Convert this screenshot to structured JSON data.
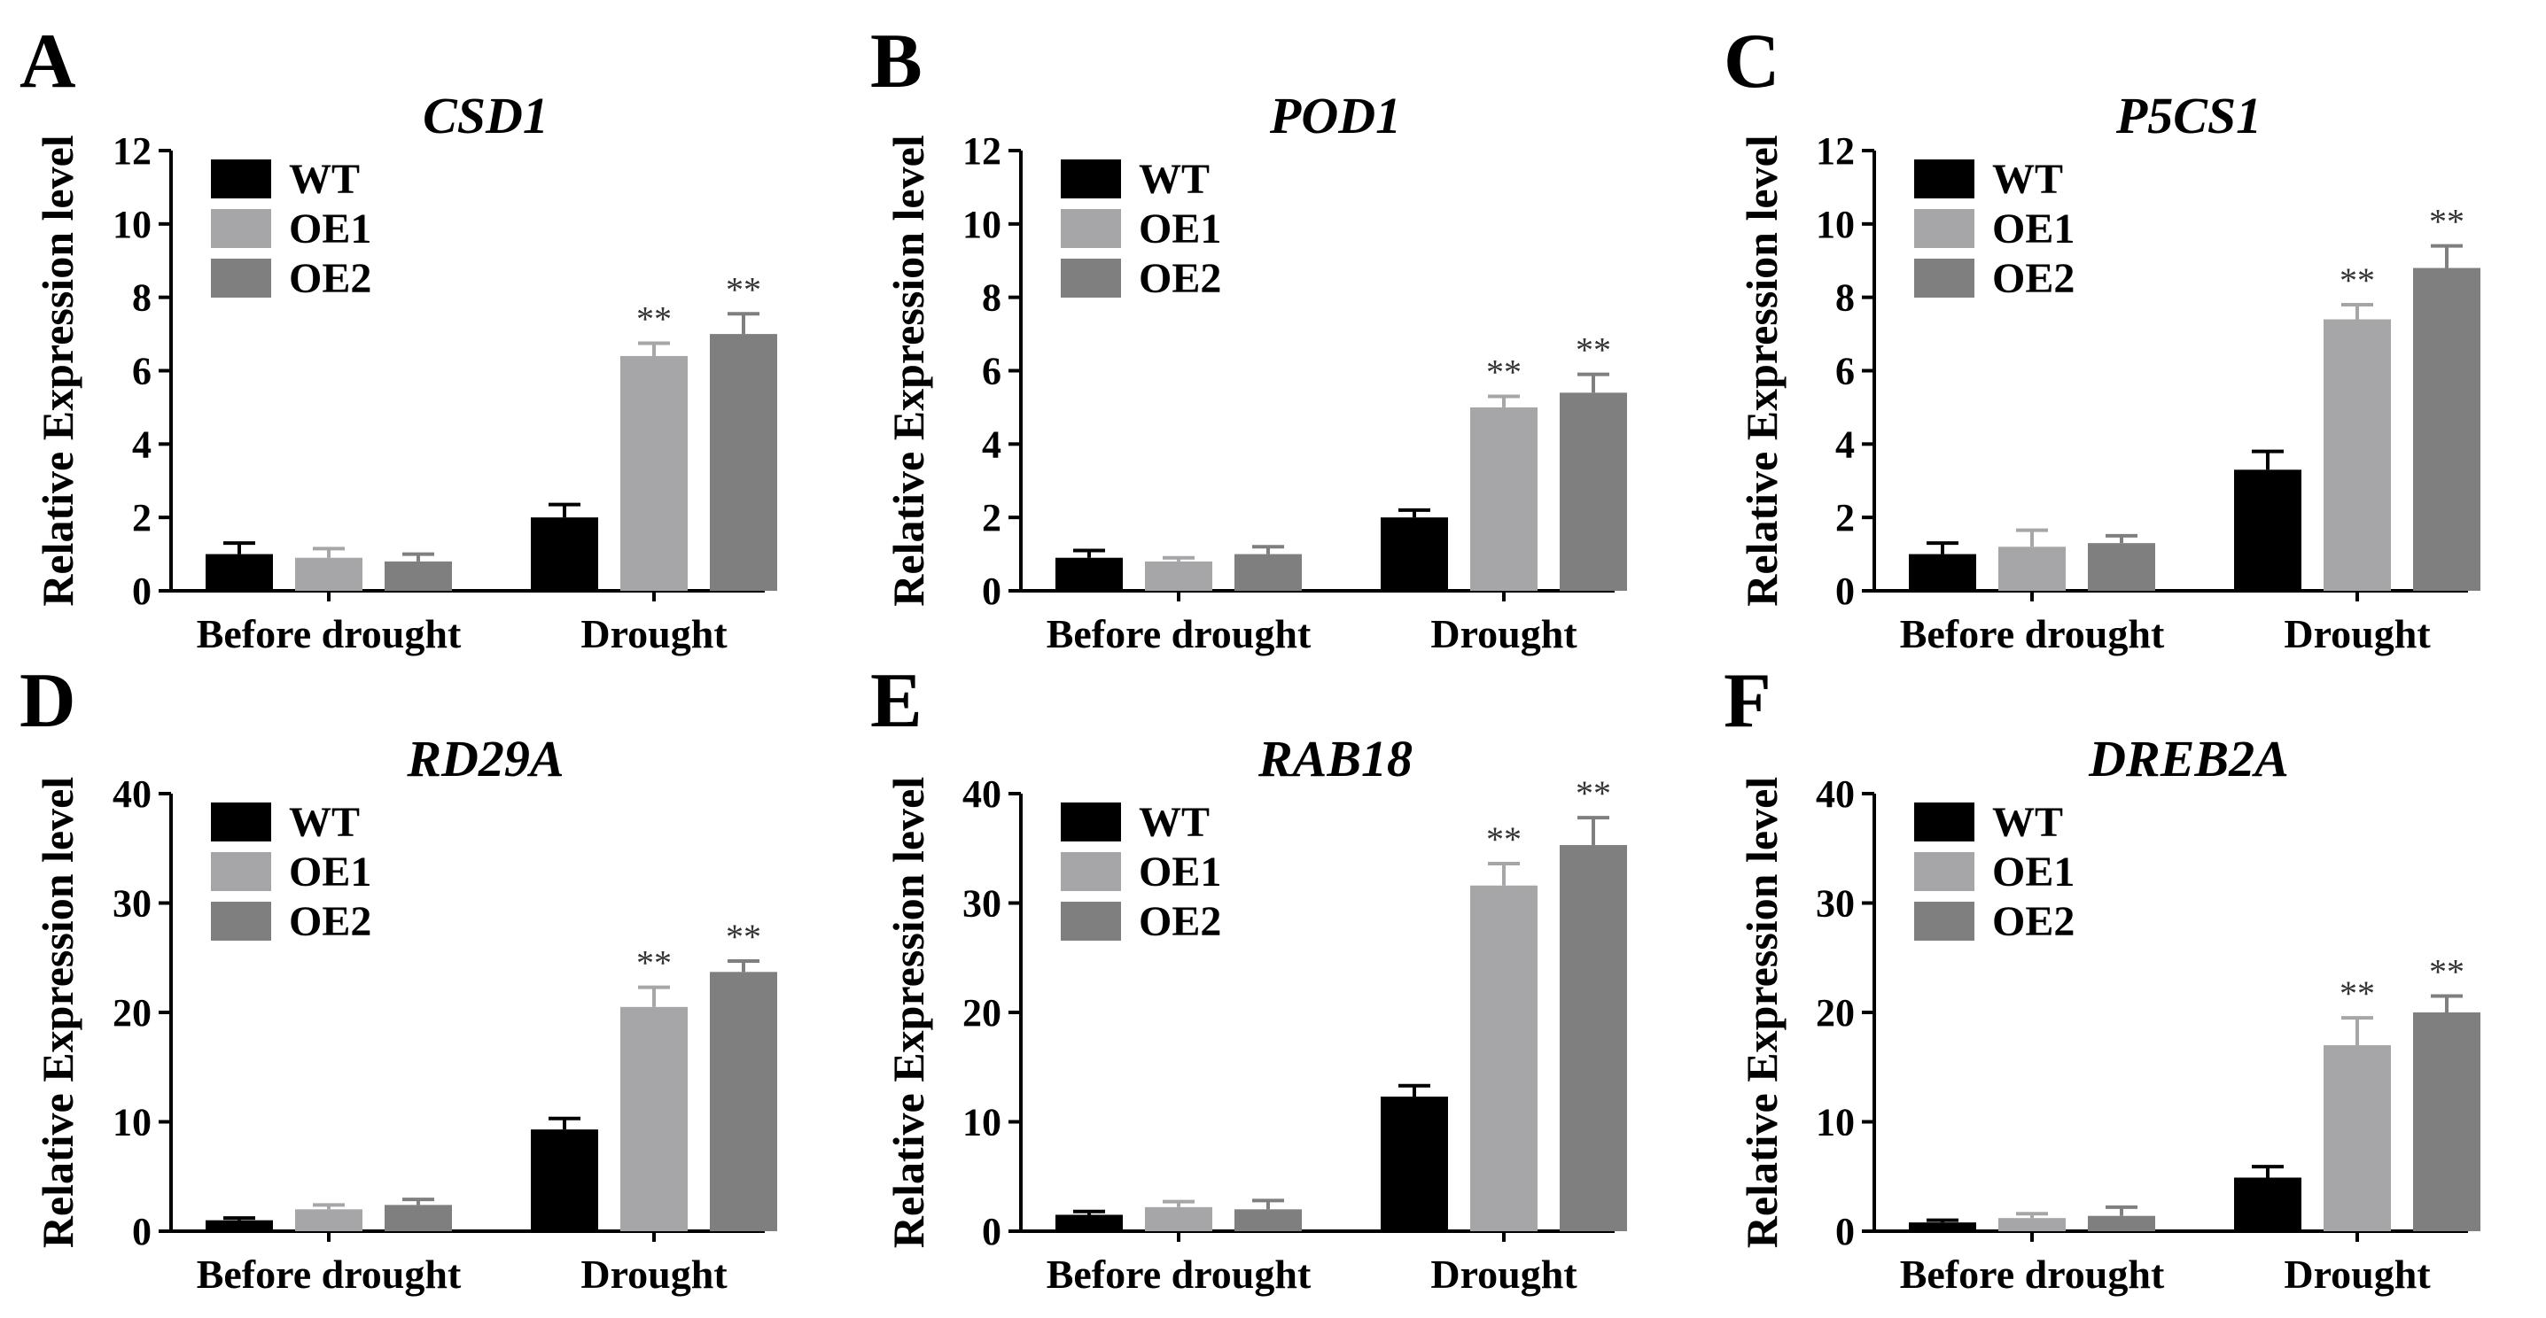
{
  "figure": {
    "colors": {
      "WT": "#000000",
      "OE1": "#a6a6a8",
      "OE2": "#7f7f7f"
    }
  },
  "chart_data": [
    {
      "panel": "A",
      "type": "bar",
      "title": "CSD1",
      "ylabel": "Relative Expression level",
      "xlabel": "",
      "ylim": [
        0,
        12
      ],
      "yticks": [
        0,
        2,
        4,
        6,
        8,
        10,
        12
      ],
      "categories": [
        "Before drought",
        "Drought"
      ],
      "legend": "top-left",
      "series": [
        {
          "name": "WT",
          "values": [
            1.0,
            2.0
          ],
          "errors": [
            0.3,
            0.35
          ],
          "sig": [
            "",
            ""
          ]
        },
        {
          "name": "OE1",
          "values": [
            0.9,
            6.4
          ],
          "errors": [
            0.25,
            0.35
          ],
          "sig": [
            "",
            "**"
          ]
        },
        {
          "name": "OE2",
          "values": [
            0.8,
            7.0
          ],
          "errors": [
            0.2,
            0.55
          ],
          "sig": [
            "",
            "**"
          ]
        }
      ]
    },
    {
      "panel": "B",
      "type": "bar",
      "title": "POD1",
      "ylabel": "Relative Expression level",
      "xlabel": "",
      "ylim": [
        0,
        12
      ],
      "yticks": [
        0,
        2,
        4,
        6,
        8,
        10,
        12
      ],
      "categories": [
        "Before drought",
        "Drought"
      ],
      "legend": "top-left",
      "series": [
        {
          "name": "WT",
          "values": [
            0.9,
            2.0
          ],
          "errors": [
            0.2,
            0.2
          ],
          "sig": [
            "",
            ""
          ]
        },
        {
          "name": "OE1",
          "values": [
            0.8,
            5.0
          ],
          "errors": [
            0.1,
            0.3
          ],
          "sig": [
            "",
            "**"
          ]
        },
        {
          "name": "OE2",
          "values": [
            1.0,
            5.4
          ],
          "errors": [
            0.2,
            0.5
          ],
          "sig": [
            "",
            "**"
          ]
        }
      ]
    },
    {
      "panel": "C",
      "type": "bar",
      "title": "P5CS1",
      "ylabel": "Relative Expression level",
      "xlabel": "",
      "ylim": [
        0,
        12
      ],
      "yticks": [
        0,
        2,
        4,
        6,
        8,
        10,
        12
      ],
      "categories": [
        "Before drought",
        "Drought"
      ],
      "legend": "top-left",
      "series": [
        {
          "name": "WT",
          "values": [
            1.0,
            3.3
          ],
          "errors": [
            0.3,
            0.5
          ],
          "sig": [
            "",
            ""
          ]
        },
        {
          "name": "OE1",
          "values": [
            1.2,
            7.4
          ],
          "errors": [
            0.45,
            0.4
          ],
          "sig": [
            "",
            "**"
          ]
        },
        {
          "name": "OE2",
          "values": [
            1.3,
            8.8
          ],
          "errors": [
            0.2,
            0.6
          ],
          "sig": [
            "",
            "**"
          ]
        }
      ]
    },
    {
      "panel": "D",
      "type": "bar",
      "title": "RD29A",
      "ylabel": "Relative Expression level",
      "xlabel": "",
      "ylim": [
        0,
        40
      ],
      "yticks": [
        0,
        10,
        20,
        30,
        40
      ],
      "categories": [
        "Before drought",
        "Drought"
      ],
      "legend": "top-left",
      "series": [
        {
          "name": "WT",
          "values": [
            1.0,
            9.3
          ],
          "errors": [
            0.2,
            1.0
          ],
          "sig": [
            "",
            ""
          ]
        },
        {
          "name": "OE1",
          "values": [
            2.0,
            20.5
          ],
          "errors": [
            0.4,
            1.8
          ],
          "sig": [
            "",
            "**"
          ]
        },
        {
          "name": "OE2",
          "values": [
            2.4,
            23.7
          ],
          "errors": [
            0.5,
            1.0
          ],
          "sig": [
            "",
            "**"
          ]
        }
      ]
    },
    {
      "panel": "E",
      "type": "bar",
      "title": "RAB18",
      "ylabel": "Relative Expression level",
      "xlabel": "",
      "ylim": [
        0,
        40
      ],
      "yticks": [
        0,
        10,
        20,
        30,
        40
      ],
      "categories": [
        "Before drought",
        "Drought"
      ],
      "legend": "top-left",
      "series": [
        {
          "name": "WT",
          "values": [
            1.5,
            12.3
          ],
          "errors": [
            0.3,
            1.0
          ],
          "sig": [
            "",
            ""
          ]
        },
        {
          "name": "OE1",
          "values": [
            2.2,
            31.6
          ],
          "errors": [
            0.5,
            2.0
          ],
          "sig": [
            "",
            "**"
          ]
        },
        {
          "name": "OE2",
          "values": [
            2.0,
            35.3
          ],
          "errors": [
            0.8,
            2.5
          ],
          "sig": [
            "",
            "**"
          ]
        }
      ]
    },
    {
      "panel": "F",
      "type": "bar",
      "title": "DREB2A",
      "ylabel": "Relative Expression level",
      "xlabel": "",
      "ylim": [
        0,
        40
      ],
      "yticks": [
        0,
        10,
        20,
        30,
        40
      ],
      "categories": [
        "Before drought",
        "Drought"
      ],
      "legend": "top-left",
      "series": [
        {
          "name": "WT",
          "values": [
            0.8,
            4.9
          ],
          "errors": [
            0.2,
            1.0
          ],
          "sig": [
            "",
            ""
          ]
        },
        {
          "name": "OE1",
          "values": [
            1.2,
            17.0
          ],
          "errors": [
            0.4,
            2.5
          ],
          "sig": [
            "",
            "**"
          ]
        },
        {
          "name": "OE2",
          "values": [
            1.4,
            20.0
          ],
          "errors": [
            0.8,
            1.5
          ],
          "sig": [
            "",
            "**"
          ]
        }
      ]
    }
  ]
}
